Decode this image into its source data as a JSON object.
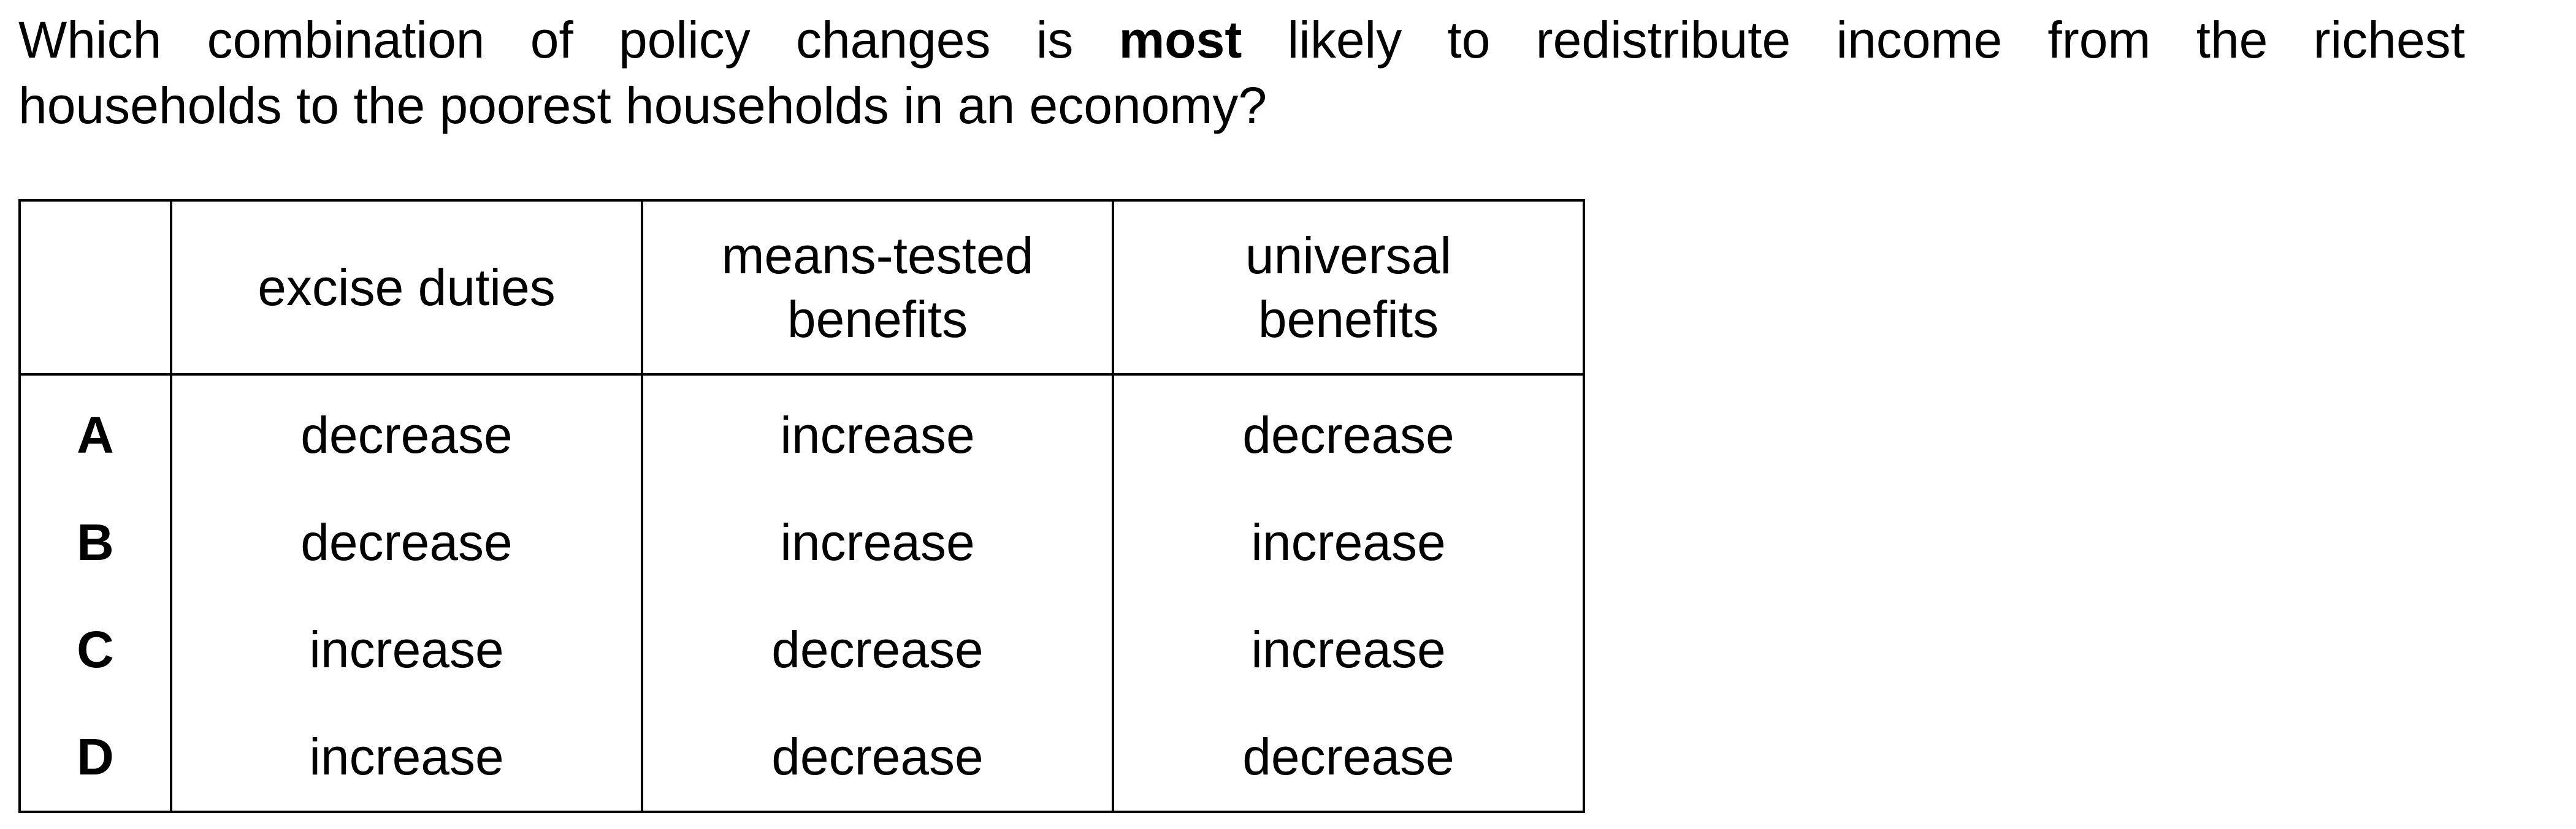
{
  "question": {
    "part1": "Which combination of policy changes is ",
    "emphasis": "most",
    "part2": " likely to redistribute income from the richest",
    "part3": "households to the poorest households in an economy?"
  },
  "table": {
    "headers": [
      "",
      "excise duties",
      "means-tested benefits",
      "universal benefits"
    ],
    "rows": [
      {
        "letter": "A",
        "cells": [
          "decrease",
          "increase",
          "decrease"
        ]
      },
      {
        "letter": "B",
        "cells": [
          "decrease",
          "increase",
          "increase"
        ]
      },
      {
        "letter": "C",
        "cells": [
          "increase",
          "decrease",
          "increase"
        ]
      },
      {
        "letter": "D",
        "cells": [
          "increase",
          "decrease",
          "decrease"
        ]
      }
    ]
  }
}
